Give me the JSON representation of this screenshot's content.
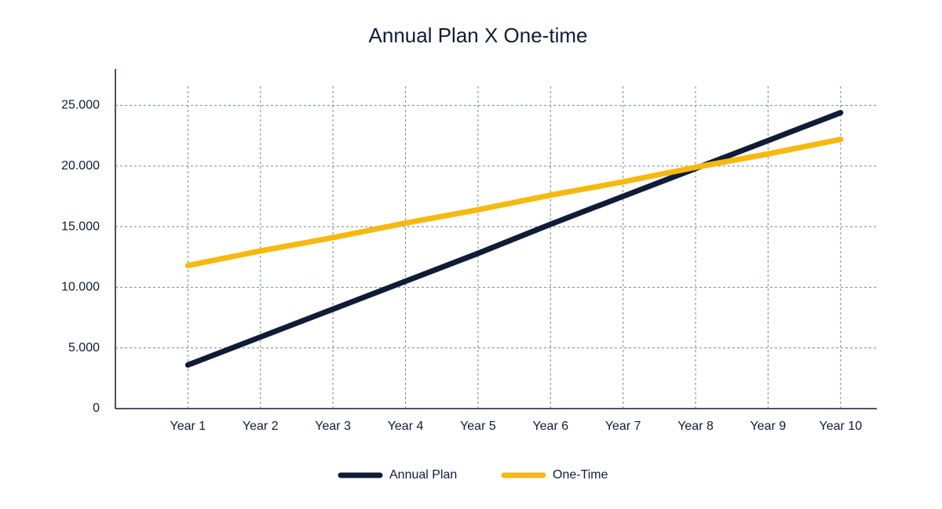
{
  "chart_data": {
    "type": "line",
    "title": "Annual Plan X One-time",
    "categories": [
      "Year 1",
      "Year 2",
      "Year 3",
      "Year 4",
      "Year 5",
      "Year 6",
      "Year 7",
      "Year 8",
      "Year 9",
      "Year 10"
    ],
    "series": [
      {
        "name": "Annual Plan",
        "color": "#0f1c36",
        "values": [
          3600,
          5900,
          8200,
          10500,
          12800,
          15200,
          17500,
          19800,
          22100,
          24400
        ]
      },
      {
        "name": "One-Time",
        "color": "#f5b90f",
        "values": [
          11800,
          13000,
          14100,
          15300,
          16400,
          17600,
          18700,
          19900,
          21000,
          22200
        ]
      }
    ],
    "ylim": [
      0,
      28000
    ],
    "yticks": [
      0,
      {
        "value": 5000,
        "label": "5.000"
      },
      {
        "value": 10000,
        "label": "10.000"
      },
      {
        "value": 15000,
        "label": "15.000"
      },
      {
        "value": 20000,
        "label": "20.000"
      },
      {
        "value": 25000,
        "label": "25.000"
      }
    ],
    "grid": true,
    "legend": "bottom"
  }
}
